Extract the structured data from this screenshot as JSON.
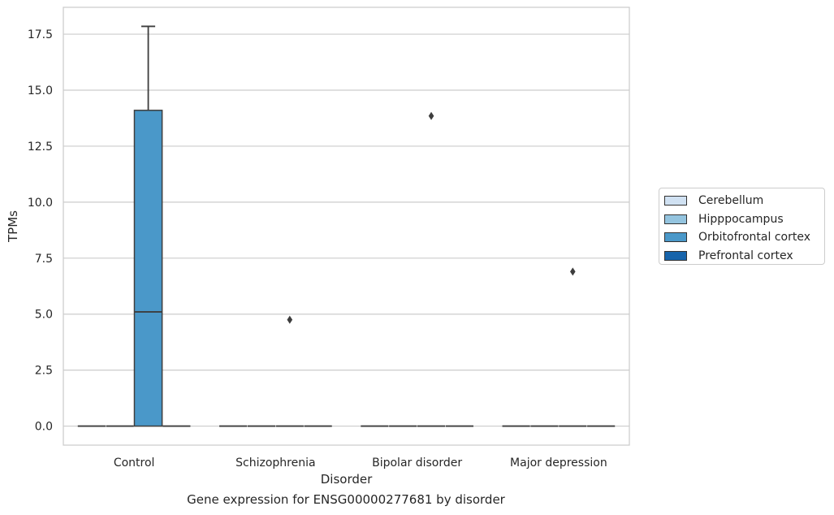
{
  "caption": "Gene expression for ENSG00000277681 by disorder",
  "chart_data": {
    "type": "box",
    "title": "",
    "xlabel": "Disorder",
    "ylabel": "TPMs",
    "ylim": [
      -0.85,
      18.7
    ],
    "yticks": [
      0.0,
      2.5,
      5.0,
      7.5,
      10.0,
      12.5,
      15.0,
      17.5
    ],
    "ytick_labels": [
      "0.0",
      "2.5",
      "5.0",
      "7.5",
      "10.0",
      "12.5",
      "15.0",
      "17.5"
    ],
    "grid": true,
    "legend_position": "right",
    "categories": [
      "Control",
      "Schizophrenia",
      "Bipolar disorder",
      "Major depression"
    ],
    "series": [
      {
        "name": "Cerebellum",
        "color": "#d0e1f2",
        "boxes": [
          {
            "category": "Control",
            "min": 0,
            "q1": 0,
            "median": 0,
            "q3": 0,
            "max": 0,
            "outliers": []
          },
          {
            "category": "Schizophrenia",
            "min": 0,
            "q1": 0,
            "median": 0,
            "q3": 0,
            "max": 0,
            "outliers": []
          },
          {
            "category": "Bipolar disorder",
            "min": 0,
            "q1": 0,
            "median": 0,
            "q3": 0,
            "max": 0,
            "outliers": []
          },
          {
            "category": "Major depression",
            "min": 0,
            "q1": 0,
            "median": 0,
            "q3": 0,
            "max": 0,
            "outliers": []
          }
        ]
      },
      {
        "name": "Hipppocampus",
        "color": "#94c4df",
        "boxes": [
          {
            "category": "Control",
            "min": 0,
            "q1": 0,
            "median": 0,
            "q3": 0,
            "max": 0,
            "outliers": []
          },
          {
            "category": "Schizophrenia",
            "min": 0,
            "q1": 0,
            "median": 0,
            "q3": 0,
            "max": 0,
            "outliers": []
          },
          {
            "category": "Bipolar disorder",
            "min": 0,
            "q1": 0,
            "median": 0,
            "q3": 0,
            "max": 0,
            "outliers": []
          },
          {
            "category": "Major depression",
            "min": 0,
            "q1": 0,
            "median": 0,
            "q3": 0,
            "max": 0,
            "outliers": []
          }
        ]
      },
      {
        "name": "Orbitofrontal cortex",
        "color": "#4a98c9",
        "boxes": [
          {
            "category": "Control",
            "min": 0,
            "q1": 0,
            "median": 5.1,
            "q3": 14.1,
            "max": 17.85,
            "outliers": []
          },
          {
            "category": "Schizophrenia",
            "min": 0,
            "q1": 0,
            "median": 0,
            "q3": 0,
            "max": 0,
            "outliers": [
              4.75
            ]
          },
          {
            "category": "Bipolar disorder",
            "min": 0,
            "q1": 0,
            "median": 0,
            "q3": 0,
            "max": 0,
            "outliers": [
              13.85
            ]
          },
          {
            "category": "Major depression",
            "min": 0,
            "q1": 0,
            "median": 0,
            "q3": 0,
            "max": 0,
            "outliers": [
              6.9
            ]
          }
        ]
      },
      {
        "name": "Prefrontal cortex",
        "color": "#1764ab",
        "boxes": [
          {
            "category": "Control",
            "min": 0,
            "q1": 0,
            "median": 0,
            "q3": 0,
            "max": 0,
            "outliers": []
          },
          {
            "category": "Schizophrenia",
            "min": 0,
            "q1": 0,
            "median": 0,
            "q3": 0,
            "max": 0,
            "outliers": []
          },
          {
            "category": "Bipolar disorder",
            "min": 0,
            "q1": 0,
            "median": 0,
            "q3": 0,
            "max": 0,
            "outliers": []
          },
          {
            "category": "Major depression",
            "min": 0,
            "q1": 0,
            "median": 0,
            "q3": 0,
            "max": 0,
            "outliers": []
          }
        ]
      }
    ]
  }
}
